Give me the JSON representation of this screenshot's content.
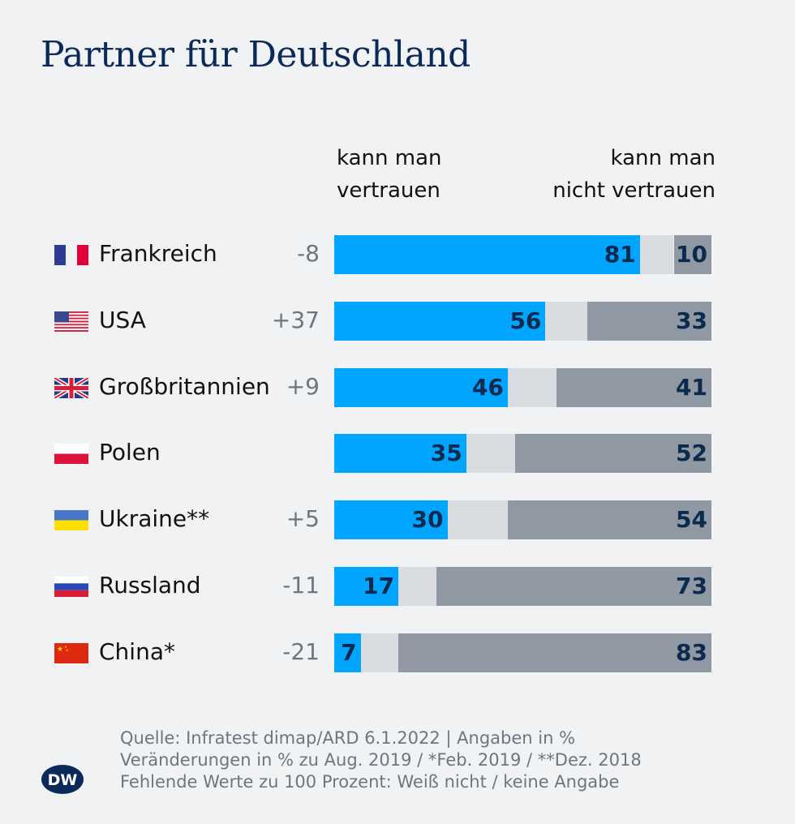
{
  "chart_data": {
    "type": "bar",
    "orientation": "horizontal",
    "stacked": true,
    "title": "Partner für Deutschland",
    "column_headers": {
      "left": [
        "kann man",
        "vertrauen"
      ],
      "right": [
        "kann man",
        "nicht vertrauen"
      ]
    },
    "categories": [
      "Frankreich",
      "USA",
      "Großbritannien",
      "Polen",
      "Ukraine**",
      "Russland",
      "China*"
    ],
    "flags": [
      "france",
      "usa",
      "uk",
      "poland",
      "ukraine",
      "russia",
      "china"
    ],
    "changes": [
      "-8",
      "+37",
      "+9",
      "",
      "+5",
      "-11",
      "-21"
    ],
    "series": [
      {
        "name": "kann man vertrauen",
        "values": [
          81,
          56,
          46,
          35,
          30,
          17,
          7
        ],
        "color": "#00a5ff"
      },
      {
        "values": [
          9,
          11,
          13,
          13,
          16,
          10,
          10
        ],
        "color": "#d9dde1"
      },
      {
        "name": "kann man nicht vertrauen",
        "values": [
          10,
          33,
          41,
          52,
          54,
          73,
          83
        ],
        "color": "#8f98a3"
      }
    ],
    "xlim": [
      0,
      100
    ],
    "grid": false,
    "legend": "top"
  },
  "footer": {
    "lines": [
      "Quelle: Infratest dimap/ARD 6.1.2022 | Angaben in %",
      "Veränderungen in % zu Aug. 2019 / *Feb. 2019 / **Dez. 2018",
      "Fehlende Werte zu 100 Prozent: Weiß nicht / keine Angabe"
    ],
    "logo": "DW"
  }
}
